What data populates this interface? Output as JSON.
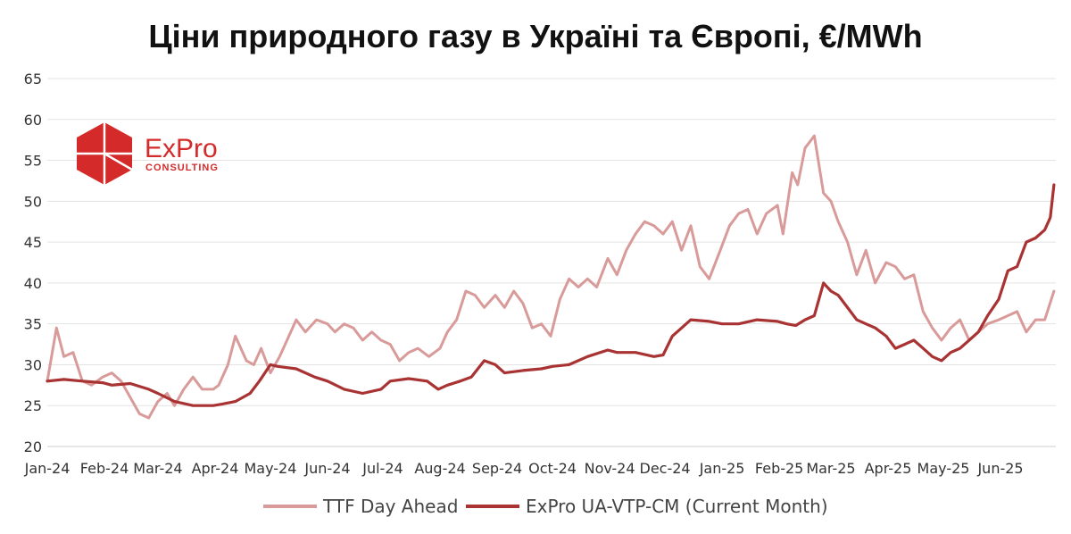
{
  "chart_data": {
    "type": "line",
    "title": "Ціни природного газу в Україні та Європі, €/MWh",
    "xlabel": "",
    "ylabel": "",
    "ylim": [
      20,
      65
    ],
    "yticks": [
      "20",
      "25",
      "30",
      "35",
      "40",
      "45",
      "50",
      "55",
      "60",
      "65"
    ],
    "x_tick_labels": [
      "Jan-24",
      "Feb-24",
      "Mar-24",
      "Apr-24",
      "May-24",
      "Jun-24",
      "Jul-24",
      "Aug-24",
      "Sep-24",
      "Oct-24",
      "Nov-24",
      "Dec-24",
      "Jan-25",
      "Feb-25",
      "Mar-25",
      "Apr-25",
      "May-25",
      "Jun-25"
    ],
    "grid": true,
    "legend_position": "bottom",
    "series": [
      {
        "name": "TTF Day Ahead",
        "color": "#d99a9a",
        "x": [
          "2024-01-01",
          "2024-01-06",
          "2024-01-10",
          "2024-01-15",
          "2024-01-20",
          "2024-01-25",
          "2024-01-31",
          "2024-02-05",
          "2024-02-10",
          "2024-02-15",
          "2024-02-20",
          "2024-02-25",
          "2024-03-01",
          "2024-03-06",
          "2024-03-10",
          "2024-03-15",
          "2024-03-20",
          "2024-03-25",
          "2024-03-31",
          "2024-04-03",
          "2024-04-08",
          "2024-04-12",
          "2024-04-18",
          "2024-04-22",
          "2024-04-26",
          "2024-05-01",
          "2024-05-06",
          "2024-05-10",
          "2024-05-15",
          "2024-05-20",
          "2024-05-26",
          "2024-06-01",
          "2024-06-05",
          "2024-06-10",
          "2024-06-15",
          "2024-06-20",
          "2024-06-25",
          "2024-06-30",
          "2024-07-05",
          "2024-07-10",
          "2024-07-15",
          "2024-07-20",
          "2024-07-26",
          "2024-08-01",
          "2024-08-05",
          "2024-08-10",
          "2024-08-15",
          "2024-08-20",
          "2024-08-25",
          "2024-08-31",
          "2024-09-05",
          "2024-09-10",
          "2024-09-15",
          "2024-09-20",
          "2024-09-25",
          "2024-09-30",
          "2024-10-05",
          "2024-10-10",
          "2024-10-15",
          "2024-10-20",
          "2024-10-25",
          "2024-10-31",
          "2024-11-05",
          "2024-11-10",
          "2024-11-15",
          "2024-11-20",
          "2024-11-25",
          "2024-11-30",
          "2024-12-05",
          "2024-12-10",
          "2024-12-15",
          "2024-12-20",
          "2024-12-25",
          "2024-12-31",
          "2025-01-05",
          "2025-01-10",
          "2025-01-15",
          "2025-01-20",
          "2025-01-25",
          "2025-01-31",
          "2025-02-03",
          "2025-02-08",
          "2025-02-11",
          "2025-02-15",
          "2025-02-20",
          "2025-02-25",
          "2025-03-01",
          "2025-03-05",
          "2025-03-10",
          "2025-03-15",
          "2025-03-20",
          "2025-03-25",
          "2025-03-31",
          "2025-04-05",
          "2025-04-10",
          "2025-04-15",
          "2025-04-20",
          "2025-04-25",
          "2025-04-30",
          "2025-05-05",
          "2025-05-10",
          "2025-05-15",
          "2025-05-20",
          "2025-05-25",
          "2025-05-31",
          "2025-06-05",
          "2025-06-10",
          "2025-06-15",
          "2025-06-20",
          "2025-06-25",
          "2025-06-30"
        ],
        "values": [
          28.0,
          34.5,
          31.0,
          31.5,
          28.0,
          27.5,
          28.5,
          29.0,
          28.0,
          26.0,
          24.0,
          23.5,
          25.5,
          26.5,
          25.0,
          27.0,
          28.5,
          27.0,
          27.0,
          27.5,
          30.0,
          33.5,
          30.5,
          30.0,
          32.0,
          29.0,
          31.0,
          33.0,
          35.5,
          34.0,
          35.5,
          35.0,
          34.0,
          35.0,
          34.5,
          33.0,
          34.0,
          33.0,
          32.5,
          30.5,
          31.5,
          32.0,
          31.0,
          32.0,
          34.0,
          35.5,
          39.0,
          38.5,
          37.0,
          38.5,
          37.0,
          39.0,
          37.5,
          34.5,
          35.0,
          33.5,
          38.0,
          40.5,
          39.5,
          40.5,
          39.5,
          43.0,
          41.0,
          44.0,
          46.0,
          47.5,
          47.0,
          46.0,
          47.5,
          44.0,
          47.0,
          42.0,
          40.5,
          44.0,
          47.0,
          48.5,
          49.0,
          46.0,
          48.5,
          49.5,
          46.0,
          53.5,
          52.0,
          56.5,
          58.0,
          51.0,
          50.0,
          47.5,
          45.0,
          41.0,
          44.0,
          40.0,
          42.5,
          42.0,
          40.5,
          41.0,
          36.5,
          34.5,
          33.0,
          34.5,
          35.5,
          33.0,
          34.0,
          35.0,
          35.5,
          36.0,
          36.5,
          34.0,
          35.5,
          35.5,
          39.0
        ]
      },
      {
        "name": "ExPro UA-VTP-CM (Current Month)",
        "color": "#a93232",
        "x": [
          "2024-01-01",
          "2024-01-10",
          "2024-01-20",
          "2024-01-31",
          "2024-02-05",
          "2024-02-15",
          "2024-02-25",
          "2024-03-01",
          "2024-03-10",
          "2024-03-20",
          "2024-03-31",
          "2024-04-05",
          "2024-04-12",
          "2024-04-20",
          "2024-04-25",
          "2024-05-01",
          "2024-05-05",
          "2024-05-15",
          "2024-05-25",
          "2024-06-01",
          "2024-06-10",
          "2024-06-20",
          "2024-06-30",
          "2024-07-05",
          "2024-07-15",
          "2024-07-25",
          "2024-07-31",
          "2024-08-05",
          "2024-08-12",
          "2024-08-18",
          "2024-08-25",
          "2024-08-31",
          "2024-09-05",
          "2024-09-15",
          "2024-09-25",
          "2024-10-01",
          "2024-10-10",
          "2024-10-20",
          "2024-10-31",
          "2024-11-05",
          "2024-11-15",
          "2024-11-25",
          "2024-11-30",
          "2024-12-05",
          "2024-12-15",
          "2024-12-25",
          "2025-01-01",
          "2025-01-10",
          "2025-01-20",
          "2025-01-31",
          "2025-02-05",
          "2025-02-10",
          "2025-02-15",
          "2025-02-20",
          "2025-02-25",
          "2025-03-01",
          "2025-03-05",
          "2025-03-10",
          "2025-03-15",
          "2025-03-20",
          "2025-03-25",
          "2025-03-31",
          "2025-04-05",
          "2025-04-10",
          "2025-04-15",
          "2025-04-20",
          "2025-04-25",
          "2025-04-30",
          "2025-05-05",
          "2025-05-10",
          "2025-05-15",
          "2025-05-20",
          "2025-05-25",
          "2025-05-31",
          "2025-06-05",
          "2025-06-10",
          "2025-06-15",
          "2025-06-20",
          "2025-06-25",
          "2025-06-28",
          "2025-06-30"
        ],
        "values": [
          28.0,
          28.2,
          28.0,
          27.8,
          27.5,
          27.7,
          27.0,
          26.5,
          25.5,
          25.0,
          25.0,
          25.2,
          25.5,
          26.5,
          28.0,
          30.0,
          29.8,
          29.5,
          28.5,
          28.0,
          27.0,
          26.5,
          27.0,
          28.0,
          28.3,
          28.0,
          27.0,
          27.5,
          28.0,
          28.5,
          30.5,
          30.0,
          29.0,
          29.3,
          29.5,
          29.8,
          30.0,
          31.0,
          31.8,
          31.5,
          31.5,
          31.0,
          31.2,
          33.5,
          35.5,
          35.3,
          35.0,
          35.0,
          35.5,
          35.3,
          35.0,
          34.8,
          35.5,
          36.0,
          40.0,
          39.0,
          38.5,
          37.0,
          35.5,
          35.0,
          34.5,
          33.5,
          32.0,
          32.5,
          33.0,
          32.0,
          31.0,
          30.5,
          31.5,
          32.0,
          33.0,
          34.0,
          36.0,
          38.0,
          41.5,
          42.0,
          45.0,
          45.5,
          46.5,
          48.0,
          52.0
        ]
      }
    ]
  },
  "logo": {
    "name": "ExPro",
    "sub": "CONSULTING",
    "brand_color": "#d42a2a"
  }
}
